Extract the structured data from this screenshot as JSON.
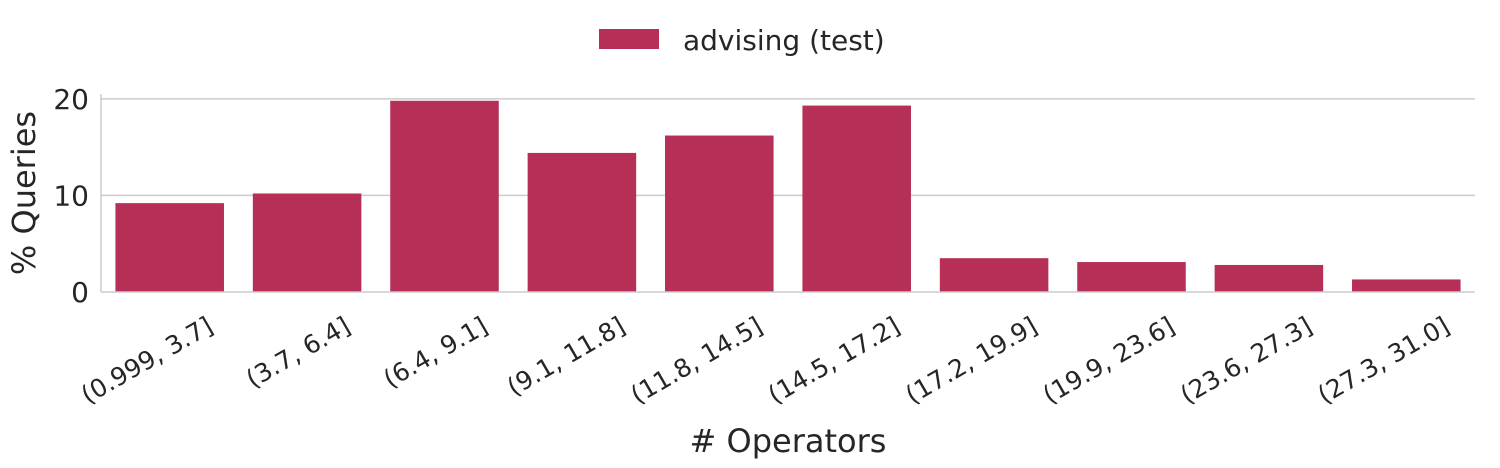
{
  "chart_data": {
    "type": "bar",
    "categories": [
      "(0.999, 3.7]",
      "(3.7, 6.4]",
      "(6.4, 9.1]",
      "(9.1, 11.8]",
      "(11.8, 14.5]",
      "(14.5, 17.2]",
      "(17.2, 19.9]",
      "(19.9, 23.6]",
      "(23.6, 27.3]",
      "(27.3, 31.0]"
    ],
    "series": [
      {
        "name": "advising (test)",
        "values": [
          9.2,
          10.2,
          19.8,
          14.4,
          16.2,
          19.3,
          3.5,
          3.1,
          2.8,
          1.3
        ],
        "color": "#b52f56"
      }
    ],
    "xlabel": "# Operators",
    "ylabel": "% Queries",
    "ylim": [
      0,
      20.5
    ],
    "yticks": [
      0,
      10,
      20
    ],
    "grid": true,
    "legend_position": "top-center"
  }
}
